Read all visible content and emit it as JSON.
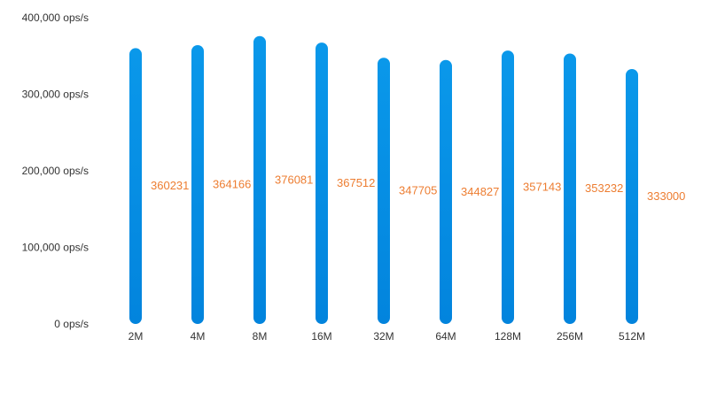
{
  "chart_data": {
    "type": "bar",
    "categories": [
      "2M",
      "4M",
      "8M",
      "16M",
      "32M",
      "64M",
      "128M",
      "256M",
      "512M"
    ],
    "series": [
      {
        "values": [
          360231,
          364166,
          376081,
          367512,
          347705,
          344827,
          357143,
          353232,
          333000
        ]
      }
    ],
    "y_tick_labels": [
      "0 ops/s",
      "100,000 ops/s",
      "200,000 ops/s",
      "300,000 ops/s",
      "400,000 ops/s"
    ],
    "ylim": [
      0,
      400000
    ],
    "grid": false,
    "data_labels": true,
    "colors": {
      "bar_top": "#0a98ea",
      "bar_bottom": "#0284dd",
      "label": "#ed7d31",
      "tick": "#333333"
    }
  }
}
